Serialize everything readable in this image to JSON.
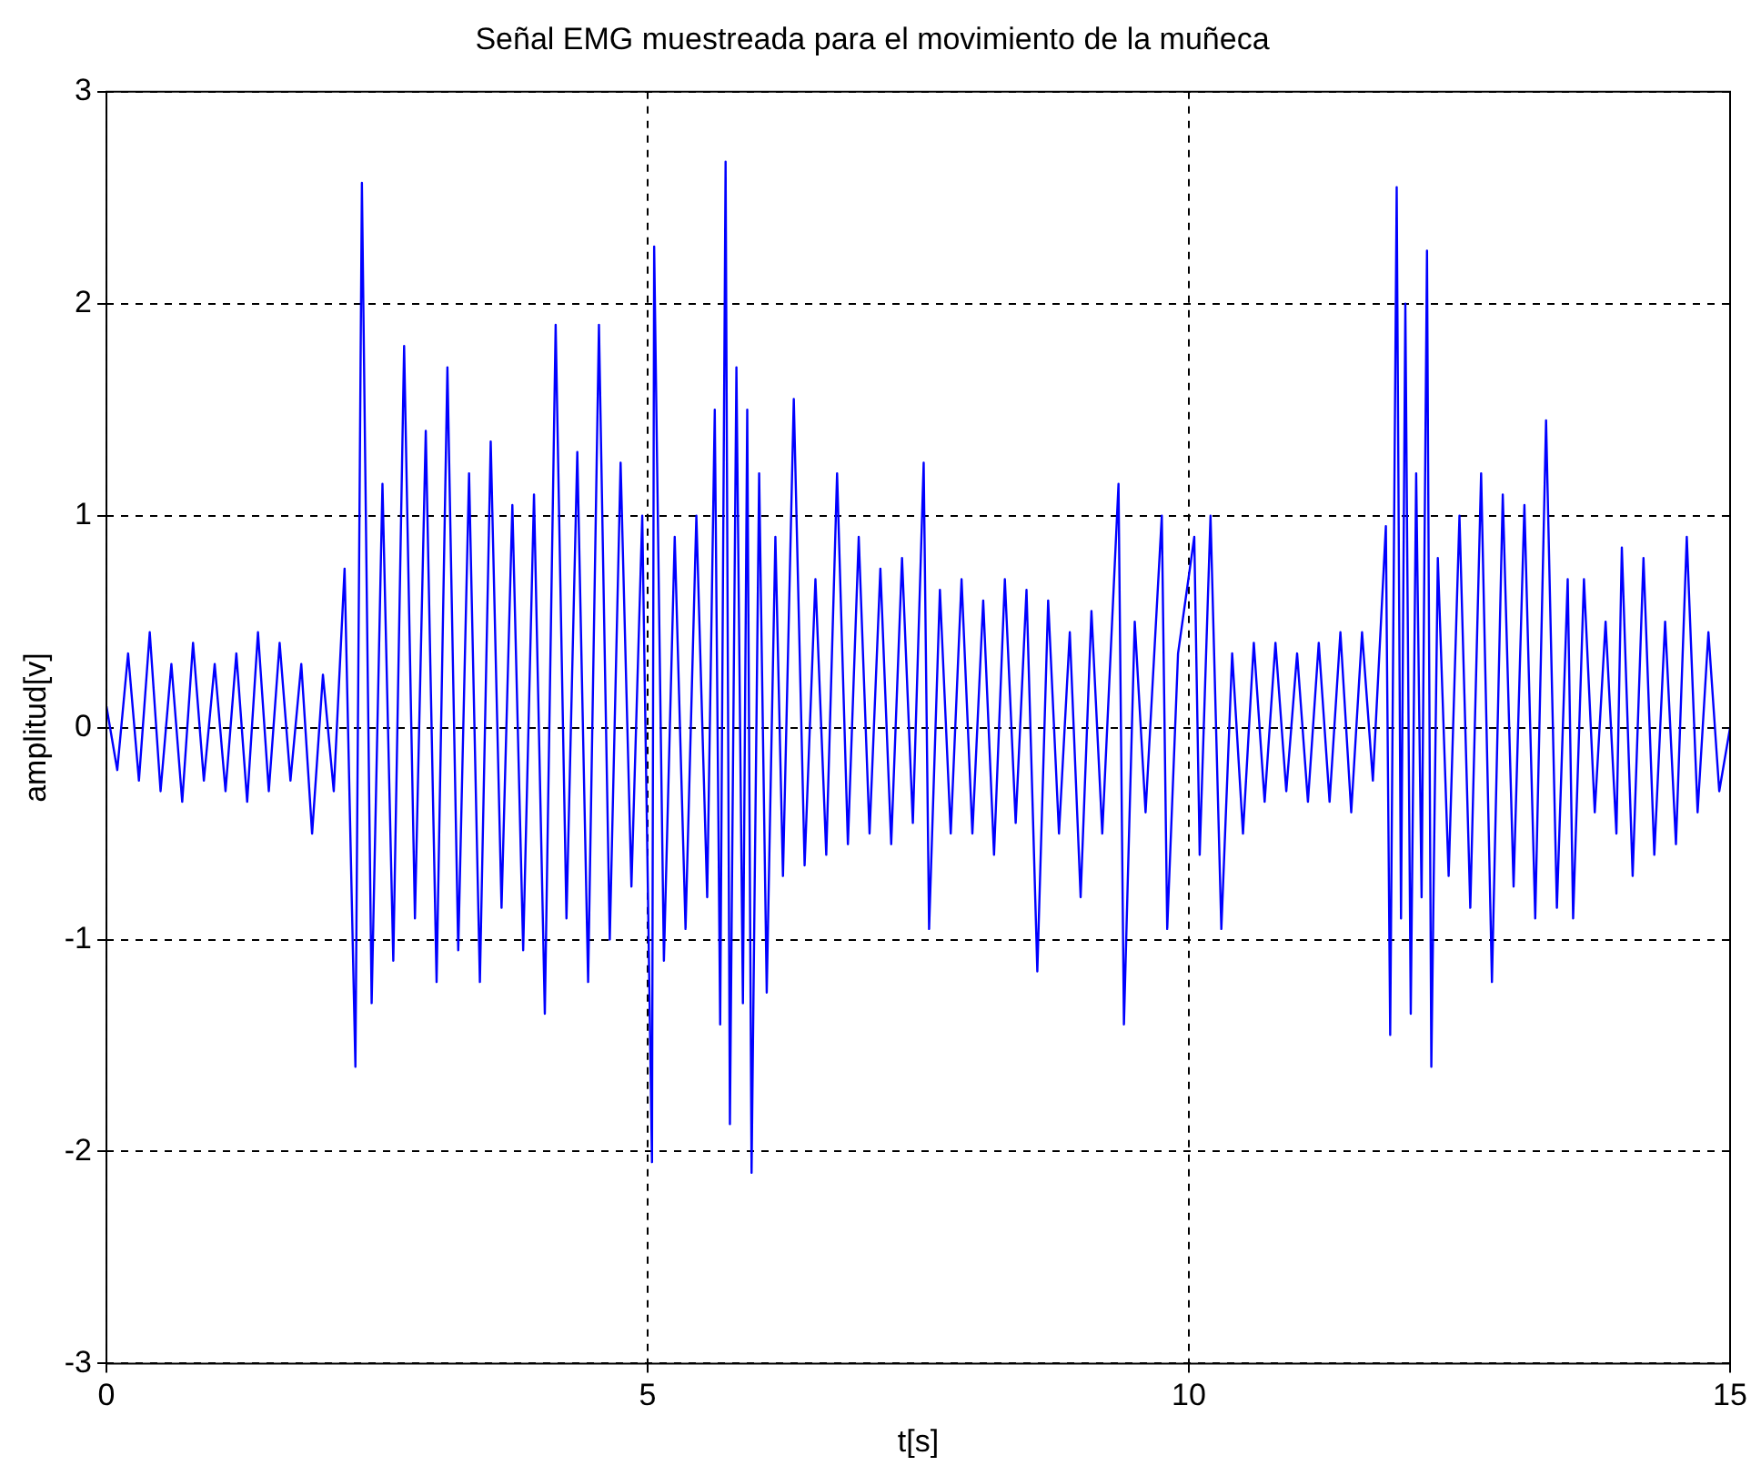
{
  "chart_data": {
    "type": "line",
    "title": "Señal EMG muestreada para el movimiento de la muñeca",
    "xlabel": "t[s]",
    "ylabel": "amplitud[v]",
    "xlim": [
      0,
      15
    ],
    "ylim": [
      -3,
      3
    ],
    "xticks": [
      0,
      5,
      10,
      15
    ],
    "yticks": [
      -3,
      -2,
      -1,
      0,
      1,
      2,
      3
    ],
    "grid": true,
    "series": [
      {
        "color": "#0000ff",
        "x": [
          0,
          0.1,
          0.2,
          0.3,
          0.4,
          0.5,
          0.6,
          0.7,
          0.8,
          0.9,
          1.0,
          1.1,
          1.2,
          1.3,
          1.4,
          1.5,
          1.6,
          1.7,
          1.8,
          1.9,
          2.0,
          2.1,
          2.2,
          2.3,
          2.36,
          2.45,
          2.55,
          2.65,
          2.75,
          2.85,
          2.95,
          3.05,
          3.15,
          3.25,
          3.35,
          3.45,
          3.55,
          3.65,
          3.75,
          3.85,
          3.95,
          4.05,
          4.15,
          4.25,
          4.35,
          4.45,
          4.55,
          4.65,
          4.75,
          4.85,
          4.95,
          5.04,
          5.06,
          5.15,
          5.25,
          5.35,
          5.45,
          5.55,
          5.62,
          5.67,
          5.72,
          5.76,
          5.82,
          5.88,
          5.92,
          5.96,
          6.03,
          6.1,
          6.18,
          6.25,
          6.35,
          6.45,
          6.55,
          6.65,
          6.75,
          6.85,
          6.95,
          7.05,
          7.15,
          7.25,
          7.35,
          7.45,
          7.55,
          7.6,
          7.7,
          7.8,
          7.9,
          8.0,
          8.1,
          8.2,
          8.3,
          8.4,
          8.5,
          8.6,
          8.7,
          8.8,
          8.9,
          9.0,
          9.1,
          9.2,
          9.35,
          9.4,
          9.5,
          9.6,
          9.75,
          9.8,
          9.9,
          10.05,
          10.1,
          10.2,
          10.3,
          10.4,
          10.5,
          10.6,
          10.7,
          10.8,
          10.9,
          11.0,
          11.1,
          11.2,
          11.3,
          11.4,
          11.5,
          11.6,
          11.7,
          11.82,
          11.86,
          11.92,
          11.96,
          12.0,
          12.05,
          12.1,
          12.15,
          12.2,
          12.24,
          12.3,
          12.4,
          12.5,
          12.6,
          12.7,
          12.8,
          12.9,
          13.0,
          13.1,
          13.2,
          13.3,
          13.4,
          13.5,
          13.55,
          13.65,
          13.75,
          13.85,
          13.95,
          14.0,
          14.1,
          14.2,
          14.3,
          14.4,
          14.5,
          14.6,
          14.7,
          14.8,
          14.9,
          15.0
        ],
        "values": [
          0.1,
          -0.2,
          0.35,
          -0.25,
          0.45,
          -0.3,
          0.3,
          -0.35,
          0.4,
          -0.25,
          0.3,
          -0.3,
          0.35,
          -0.35,
          0.45,
          -0.3,
          0.4,
          -0.25,
          0.3,
          -0.5,
          0.25,
          -0.3,
          0.75,
          -1.6,
          2.57,
          -1.3,
          1.15,
          -1.1,
          1.8,
          -0.9,
          1.4,
          -1.2,
          1.7,
          -1.05,
          1.2,
          -1.2,
          1.35,
          -0.85,
          1.05,
          -1.05,
          1.1,
          -1.35,
          1.9,
          -0.9,
          1.3,
          -1.2,
          1.9,
          -1.0,
          1.25,
          -0.75,
          1.0,
          -2.05,
          2.27,
          -1.1,
          0.9,
          -0.95,
          1.0,
          -0.8,
          1.5,
          -1.4,
          2.67,
          -1.87,
          1.7,
          -1.3,
          1.5,
          -2.1,
          1.2,
          -1.25,
          0.9,
          -0.7,
          1.55,
          -0.65,
          0.7,
          -0.6,
          1.2,
          -0.55,
          0.9,
          -0.5,
          0.75,
          -0.55,
          0.8,
          -0.45,
          1.25,
          -0.95,
          0.65,
          -0.5,
          0.7,
          -0.5,
          0.6,
          -0.6,
          0.7,
          -0.45,
          0.65,
          -1.15,
          0.6,
          -0.5,
          0.45,
          -0.8,
          0.55,
          -0.5,
          1.15,
          -1.4,
          0.5,
          -0.4,
          1.0,
          -0.95,
          0.35,
          0.9,
          -0.6,
          1.0,
          -0.95,
          0.35,
          -0.5,
          0.4,
          -0.35,
          0.4,
          -0.3,
          0.35,
          -0.35,
          0.4,
          -0.35,
          0.45,
          -0.4,
          0.45,
          -0.25,
          0.95,
          -1.45,
          2.55,
          -0.9,
          2.0,
          -1.35,
          1.2,
          -0.8,
          2.25,
          -1.6,
          0.8,
          -0.7,
          1.0,
          -0.85,
          1.2,
          -1.2,
          1.1,
          -0.75,
          1.05,
          -0.9,
          1.45,
          -0.85,
          0.7,
          -0.9,
          0.7,
          -0.4,
          0.5,
          -0.5,
          0.85,
          -0.7,
          0.8,
          -0.6,
          0.5,
          -0.55,
          0.9,
          -0.4,
          0.45,
          -0.3,
          0.0
        ]
      }
    ]
  }
}
